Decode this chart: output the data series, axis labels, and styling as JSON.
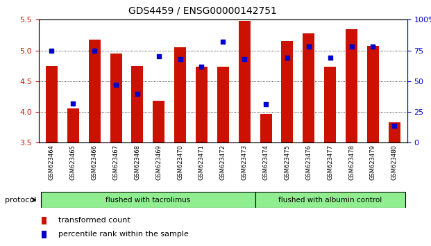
{
  "title": "GDS4459 / ENSG00000142751",
  "samples": [
    "GSM623464",
    "GSM623465",
    "GSM623466",
    "GSM623467",
    "GSM623468",
    "GSM623469",
    "GSM623470",
    "GSM623471",
    "GSM623472",
    "GSM623473",
    "GSM623474",
    "GSM623475",
    "GSM623476",
    "GSM623477",
    "GSM623478",
    "GSM623479",
    "GSM623480"
  ],
  "bar_values": [
    4.75,
    4.06,
    5.18,
    4.95,
    4.75,
    4.18,
    5.05,
    4.73,
    4.73,
    5.48,
    3.97,
    5.15,
    5.28,
    4.73,
    5.35,
    5.07,
    3.83
  ],
  "percentile_ranks": [
    75,
    32,
    75,
    47,
    40,
    70,
    68,
    62,
    82,
    68,
    31,
    69,
    78,
    69,
    78,
    78,
    14
  ],
  "ylim_left": [
    3.5,
    5.5
  ],
  "ylim_right": [
    0,
    100
  ],
  "bar_color": "#CC1100",
  "dot_color": "#0000CC",
  "bar_width": 0.55,
  "protocol_label1": "flushed with tacrolimus",
  "protocol_label2": "flushed with albumin control",
  "protocol_bg": "#90EE90",
  "left_tick_color": "#CC1100",
  "right_tick_color": "#0000CC",
  "yticks_left": [
    3.5,
    4.0,
    4.5,
    5.0,
    5.5
  ],
  "yticks_right": [
    0,
    25,
    50,
    75,
    100
  ],
  "grid_vals": [
    4.0,
    4.5,
    5.0
  ],
  "n_group1": 10,
  "n_group2": 7
}
